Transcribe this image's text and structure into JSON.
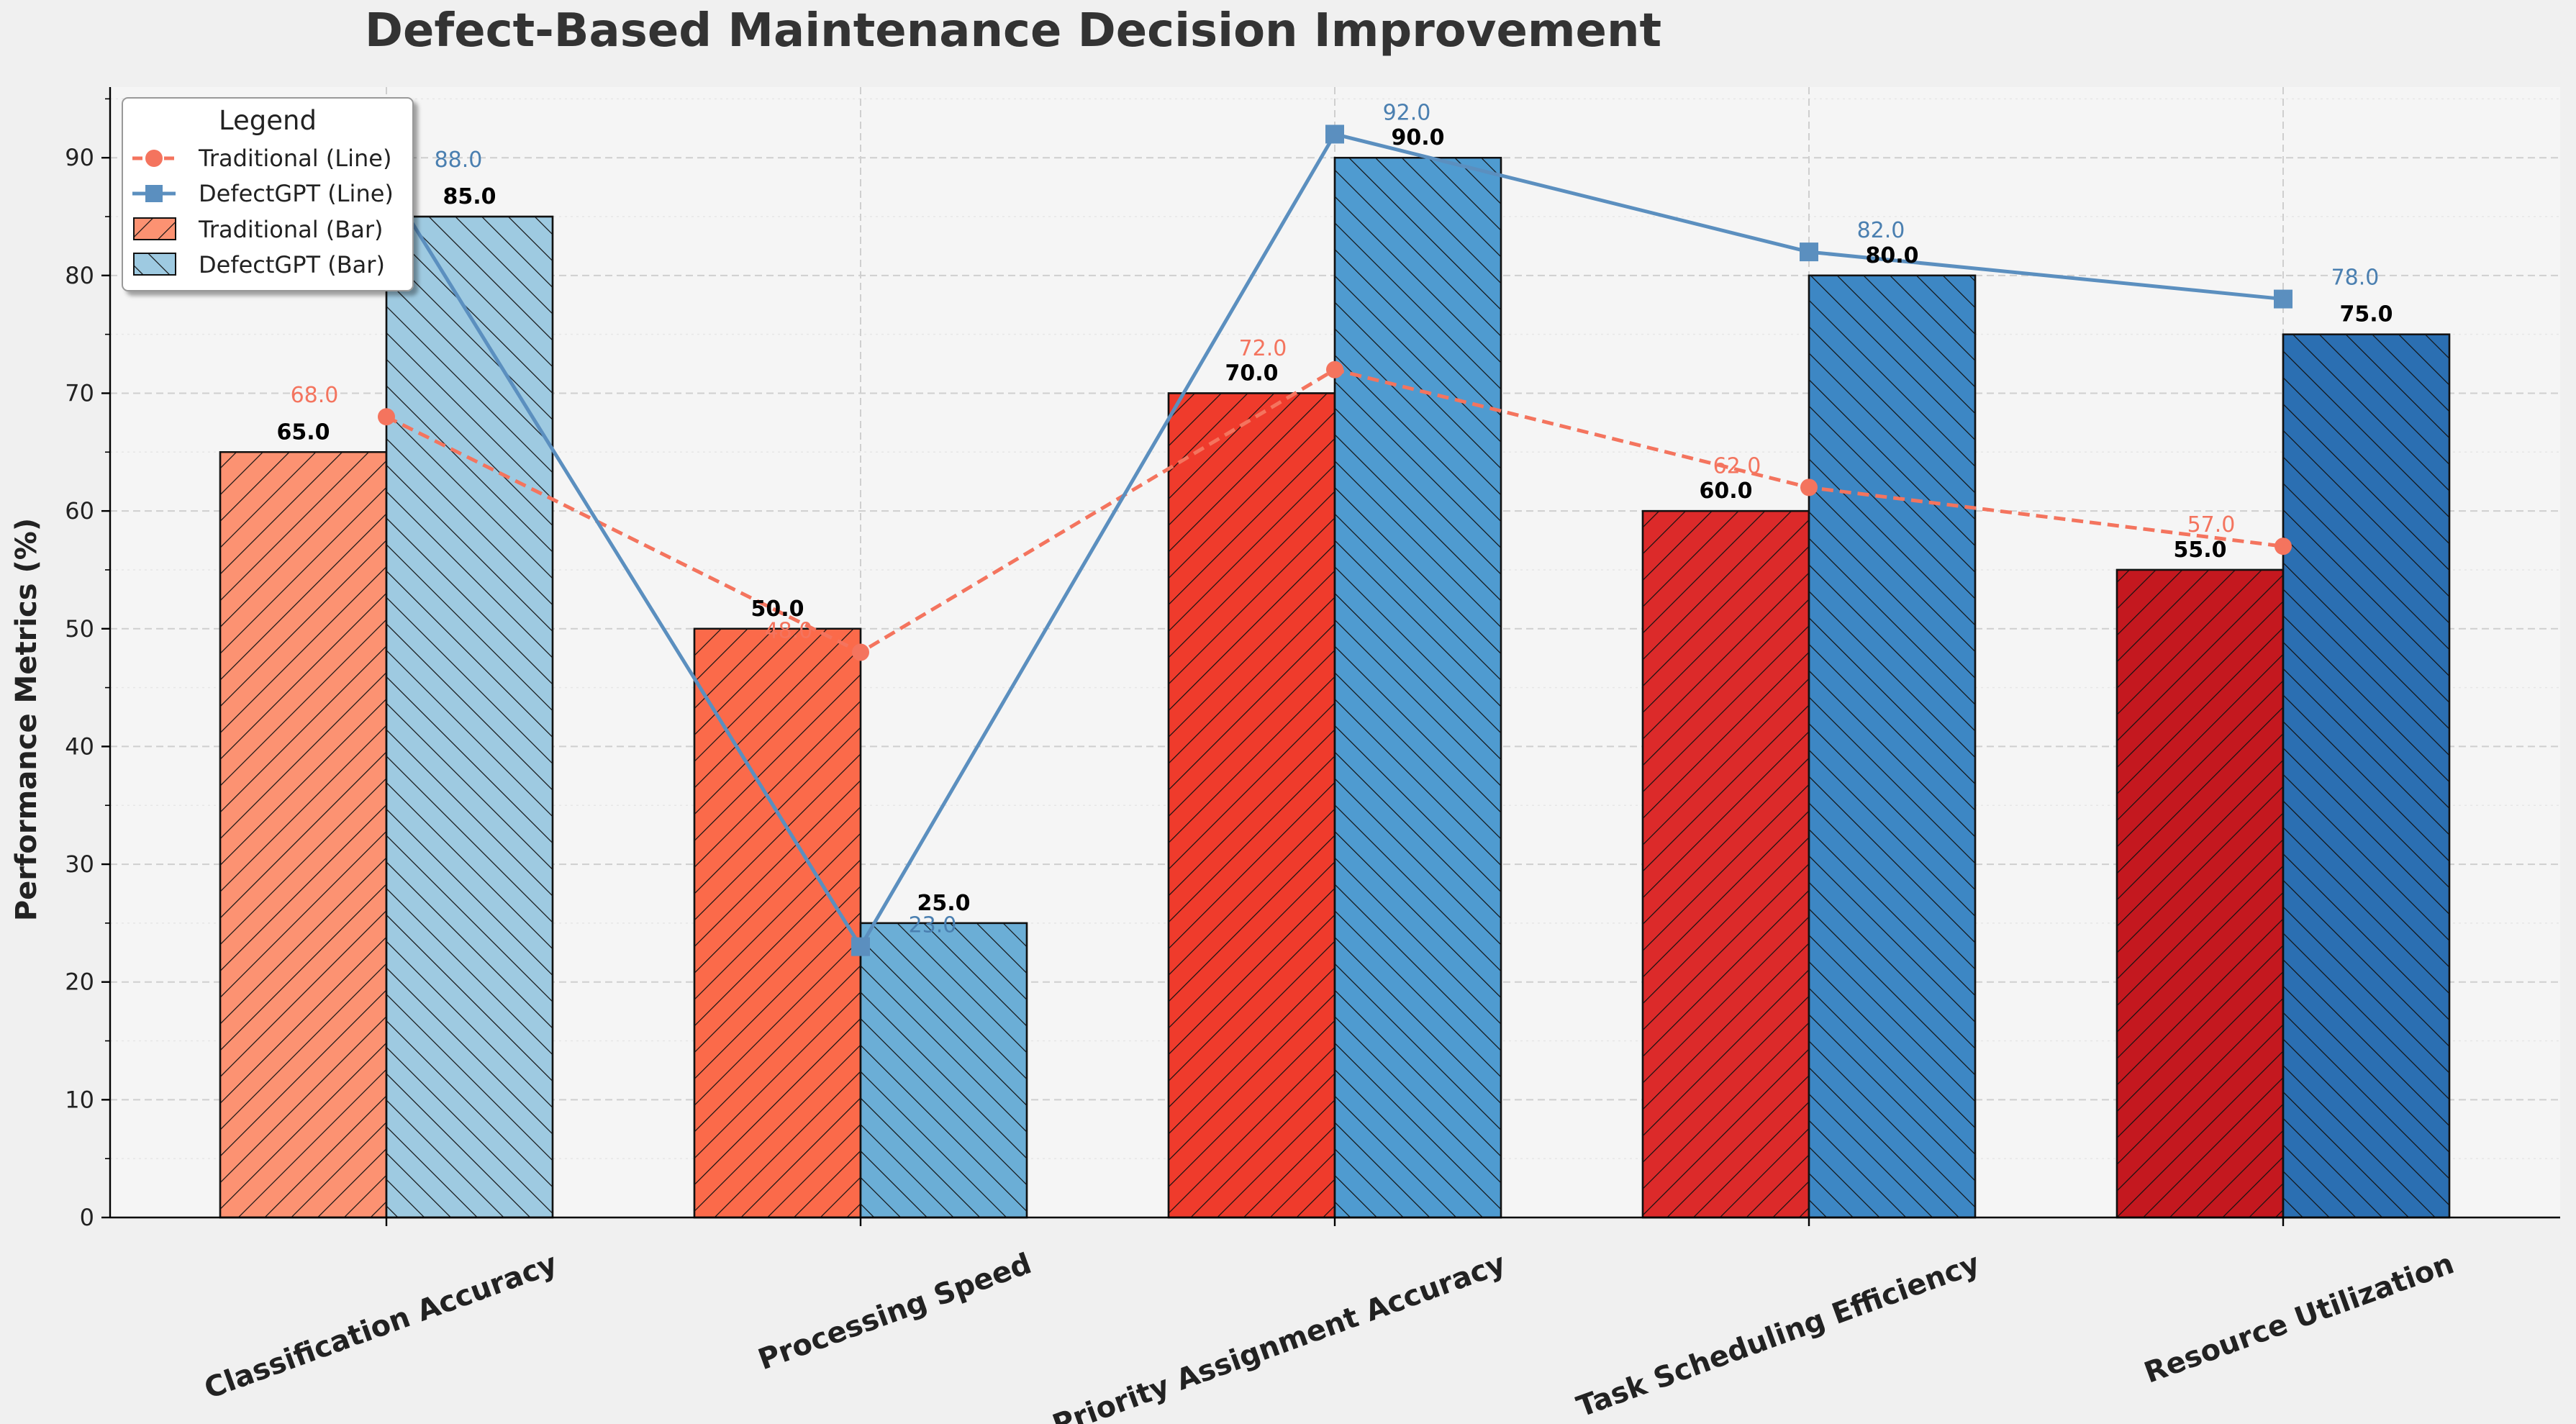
{
  "chart_data": {
    "type": "bar",
    "title": "Defect-Based Maintenance Decision Improvement",
    "xlabel": "",
    "ylabel": "Performance Metrics (%)",
    "ylim": [
      0,
      96
    ],
    "yticks": [
      0,
      10,
      20,
      30,
      40,
      50,
      60,
      70,
      80,
      90
    ],
    "ytick_labels": [
      "0",
      "10",
      "20",
      "30",
      "40",
      "50",
      "60",
      "70",
      "80",
      "90"
    ],
    "grid": true,
    "categories": [
      "Classification Accuracy",
      "Processing Speed",
      "Priority Assignment Accuracy",
      "Task Scheduling Efficiency",
      "Resource Utilization"
    ],
    "bar_series": [
      {
        "name": "Traditional (Bar)",
        "values": [
          65.0,
          50.0,
          70.0,
          60.0,
          55.0
        ],
        "value_labels": [
          "65.0",
          "50.0",
          "70.0",
          "60.0",
          "55.0"
        ],
        "colors": [
          "#fc9272",
          "#fb6a4a",
          "#ef3b2c",
          "#dc2a2a",
          "#c4181f"
        ],
        "hatch": "forward-diagonal"
      },
      {
        "name": "DefectGPT (Bar)",
        "values": [
          85.0,
          25.0,
          90.0,
          80.0,
          75.0
        ],
        "value_labels": [
          "85.0",
          "25.0",
          "90.0",
          "80.0",
          "75.0"
        ],
        "colors": [
          "#9ecae1",
          "#6baed6",
          "#4f9bd0",
          "#3d87c4",
          "#2b6fb2"
        ],
        "hatch": "back-diagonal"
      }
    ],
    "line_series": [
      {
        "name": "Traditional (Line)",
        "values": [
          68.0,
          48.0,
          72.0,
          62.0,
          57.0
        ],
        "value_labels": [
          "68.0",
          "48.0",
          "72.0",
          "62.0",
          "57.0"
        ],
        "color": "#f4745e",
        "style": "dashed",
        "marker": "circle"
      },
      {
        "name": "DefectGPT (Line)",
        "values": [
          88.0,
          23.0,
          92.0,
          82.0,
          78.0
        ],
        "value_labels": [
          "88.0",
          "23.0",
          "92.0",
          "82.0",
          "78.0"
        ],
        "color": "#5b8fbf",
        "style": "solid",
        "marker": "square"
      }
    ],
    "legend": {
      "title": "Legend",
      "placement": "upper-left",
      "entries": [
        "Traditional (Line)",
        "DefectGPT (Line)",
        "Traditional (Bar)",
        "DefectGPT (Bar)"
      ]
    },
    "colors": {
      "figure_bg": "#f0f0f0",
      "plot_bg": "#f5f5f5",
      "grid": "#cccccc",
      "traditional_label": "#f4745e",
      "defectgpt_label": "#4a7fb0"
    }
  }
}
